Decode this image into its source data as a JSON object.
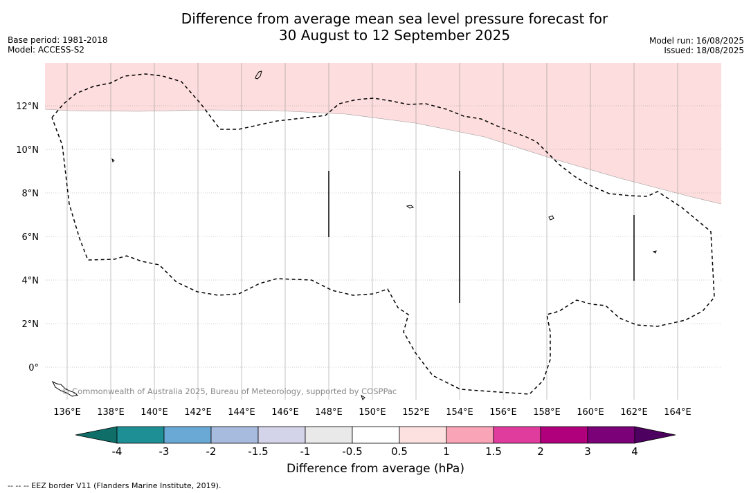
{
  "title": {
    "line1": "Difference from average mean sea level pressure forecast for",
    "line2": "30 August to 12 September 2025"
  },
  "meta_left": {
    "base_period": "Base period: 1981-2018",
    "model": "Model: ACCESS-S2"
  },
  "meta_right": {
    "model_run": "Model run: 16/08/2025",
    "issued": "Issued: 18/08/2025"
  },
  "map": {
    "lon_labels": [
      "136°E",
      "138°E",
      "140°E",
      "142°E",
      "144°E",
      "146°E",
      "148°E",
      "150°E",
      "152°E",
      "154°E",
      "156°E",
      "158°E",
      "160°E",
      "162°E",
      "164°E"
    ],
    "lat_labels": [
      "12°N",
      "10°N",
      "8°N",
      "6°N",
      "4°N",
      "2°N",
      "0°"
    ],
    "copyright": "© Commonwealth of Australia 2025, Bureau of Meteorology, supported by COSPPac",
    "shade_color": "#fddddd"
  },
  "colorbar": {
    "labels": [
      "-4",
      "-3",
      "-2",
      "-1.5",
      "-1",
      "-0.5",
      "0.5",
      "1",
      "1.5",
      "2",
      "3",
      "4"
    ],
    "colors": [
      "#1e8f95",
      "#6aa9d6",
      "#a7bbde",
      "#d3d3ea",
      "#e9e9e9",
      "#ffffff",
      "#fde0e0",
      "#f9a4b7",
      "#e03c9d",
      "#b0007c",
      "#7a0177"
    ],
    "low_extend_color": "#0f6e68",
    "high_extend_color": "#4d005f",
    "title": "Difference from average (hPa)"
  },
  "footer": {
    "legend": "--  --  -- EEZ border V11 (Flanders Marine Institute, 2019)."
  }
}
